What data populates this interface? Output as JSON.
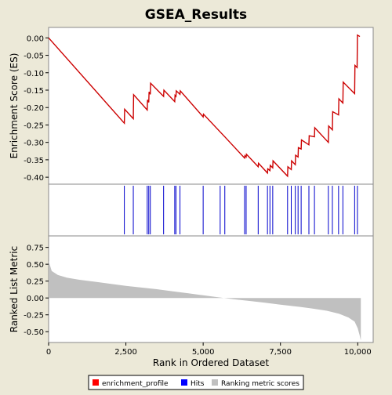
{
  "chart_data": {
    "type": "line",
    "title": "GSEA_Results",
    "xlabel": "Rank in Ordered Dataset",
    "xlim": [
      0,
      10500
    ],
    "x_ticks": [
      0,
      2500,
      5000,
      7500,
      10000
    ],
    "x_tick_labels": [
      "0",
      "2,500",
      "5,000",
      "7,500",
      "10,000"
    ],
    "panels": {
      "es": {
        "ylabel": "Enrichment Score (ES)",
        "ylim": [
          -0.42,
          0.03
        ],
        "y_ticks": [
          0.0,
          -0.05,
          -0.1,
          -0.15,
          -0.2,
          -0.25,
          -0.3,
          -0.35,
          -0.4
        ],
        "y_tick_labels": [
          "0.00",
          "-0.05",
          "-0.10",
          "-0.15",
          "-0.20",
          "-0.25",
          "-0.30",
          "-0.35",
          "-0.40"
        ],
        "series": [
          {
            "name": "enrichment_profile",
            "color": "#cc0000",
            "points": [
              [
                0,
                0.0
              ],
              [
                2450,
                -0.245
              ],
              [
                2460,
                -0.205
              ],
              [
                2740,
                -0.232
              ],
              [
                2750,
                -0.163
              ],
              [
                3190,
                -0.207
              ],
              [
                3200,
                -0.178
              ],
              [
                3240,
                -0.185
              ],
              [
                3250,
                -0.155
              ],
              [
                3290,
                -0.162
              ],
              [
                3300,
                -0.13
              ],
              [
                3720,
                -0.168
              ],
              [
                3730,
                -0.15
              ],
              [
                4080,
                -0.183
              ],
              [
                4090,
                -0.165
              ],
              [
                4120,
                -0.168
              ],
              [
                4130,
                -0.152
              ],
              [
                4250,
                -0.162
              ],
              [
                4260,
                -0.152
              ],
              [
                5000,
                -0.227
              ],
              [
                5010,
                -0.219
              ],
              [
                5550,
                -0.27
              ],
              [
                5700,
                -0.284
              ],
              [
                6340,
                -0.345
              ],
              [
                6350,
                -0.338
              ],
              [
                6390,
                -0.342
              ],
              [
                6400,
                -0.334
              ],
              [
                6780,
                -0.37
              ],
              [
                6790,
                -0.36
              ],
              [
                7080,
                -0.388
              ],
              [
                7090,
                -0.376
              ],
              [
                7160,
                -0.381
              ],
              [
                7170,
                -0.366
              ],
              [
                7250,
                -0.373
              ],
              [
                7260,
                -0.353
              ],
              [
                7730,
                -0.397
              ],
              [
                7740,
                -0.37
              ],
              [
                7850,
                -0.378
              ],
              [
                7860,
                -0.353
              ],
              [
                7980,
                -0.364
              ],
              [
                7990,
                -0.337
              ],
              [
                8070,
                -0.342
              ],
              [
                8080,
                -0.315
              ],
              [
                8170,
                -0.319
              ],
              [
                8180,
                -0.293
              ],
              [
                8420,
                -0.307
              ],
              [
                8430,
                -0.281
              ],
              [
                8600,
                -0.284
              ],
              [
                8610,
                -0.258
              ],
              [
                9050,
                -0.3
              ],
              [
                9060,
                -0.253
              ],
              [
                9180,
                -0.264
              ],
              [
                9190,
                -0.212
              ],
              [
                9380,
                -0.221
              ],
              [
                9390,
                -0.175
              ],
              [
                9520,
                -0.187
              ],
              [
                9530,
                -0.127
              ],
              [
                9900,
                -0.16
              ],
              [
                9910,
                -0.079
              ],
              [
                9980,
                -0.085
              ],
              [
                9990,
                0.008
              ],
              [
                10070,
                0.004
              ]
            ]
          }
        ]
      },
      "hits": {
        "series_name": "Hits",
        "color": "#0000cc",
        "positions": [
          2450,
          2740,
          3190,
          3240,
          3290,
          3720,
          4080,
          4120,
          4250,
          5000,
          5550,
          5700,
          6340,
          6390,
          6780,
          7080,
          7160,
          7250,
          7730,
          7850,
          7980,
          8070,
          8170,
          8420,
          8600,
          9050,
          9180,
          9380,
          9520,
          9900,
          9990
        ]
      },
      "metric": {
        "ylabel": "Ranked List Metric",
        "series_name": "Ranking metric scores",
        "color": "#c0c0c0",
        "ylim": [
          -0.66,
          0.92
        ],
        "y_ticks": [
          0.75,
          0.5,
          0.25,
          0.0,
          -0.25,
          -0.5
        ],
        "y_tick_labels": [
          "0.75",
          "0.50",
          "0.25",
          "0.00",
          "-0.25",
          "-0.50"
        ],
        "x_end": 10100,
        "profile": [
          [
            0,
            0.55
          ],
          [
            100,
            0.4
          ],
          [
            300,
            0.34
          ],
          [
            600,
            0.3
          ],
          [
            1000,
            0.27
          ],
          [
            1500,
            0.24
          ],
          [
            2000,
            0.21
          ],
          [
            2500,
            0.18
          ],
          [
            3000,
            0.155
          ],
          [
            3500,
            0.13
          ],
          [
            4000,
            0.1
          ],
          [
            4500,
            0.07
          ],
          [
            5000,
            0.04
          ],
          [
            5500,
            0.01
          ],
          [
            6000,
            -0.02
          ],
          [
            6500,
            -0.045
          ],
          [
            7000,
            -0.07
          ],
          [
            7500,
            -0.1
          ],
          [
            8000,
            -0.125
          ],
          [
            8500,
            -0.155
          ],
          [
            9000,
            -0.19
          ],
          [
            9400,
            -0.235
          ],
          [
            9700,
            -0.29
          ],
          [
            9900,
            -0.35
          ],
          [
            10000,
            -0.45
          ],
          [
            10060,
            -0.55
          ],
          [
            10100,
            -0.63
          ]
        ]
      }
    },
    "legend": {
      "placement": "bottom",
      "items": [
        {
          "label": "enrichment_profile",
          "color": "#ff0000"
        },
        {
          "label": "Hits",
          "color": "#0000ff"
        },
        {
          "label": "Ranking metric scores",
          "color": "#c0c0c0"
        }
      ]
    }
  }
}
